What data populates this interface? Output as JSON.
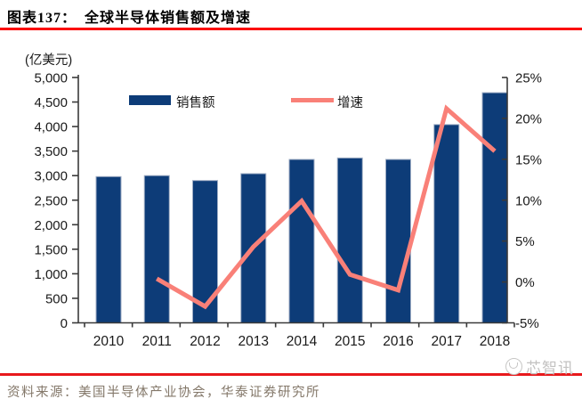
{
  "header": {
    "title": "图表137：　全球半导体销售额及增速"
  },
  "chart_data": {
    "type": "bar",
    "title": "全球半导体销售额及增速",
    "categories": [
      "2010",
      "2011",
      "2012",
      "2013",
      "2014",
      "2015",
      "2016",
      "2017",
      "2018"
    ],
    "series": [
      {
        "name": "销售额",
        "type": "bar",
        "axis": "left",
        "unit": "亿美元",
        "values": [
          2980,
          3000,
          2900,
          3040,
          3330,
          3360,
          3330,
          4040,
          4690
        ]
      },
      {
        "name": "增速",
        "type": "line",
        "axis": "right",
        "unit": "%",
        "values": [
          null,
          0.4,
          -3.0,
          4.3,
          9.9,
          0.9,
          -1.0,
          21.2,
          16.0
        ]
      }
    ],
    "left_axis": {
      "label": "(亿美元)",
      "min": 0,
      "max": 5000,
      "step": 500,
      "tick_labels": [
        "5,000",
        "4,500",
        "4,000",
        "3,500",
        "3,000",
        "2,500",
        "2,000",
        "1,500",
        "1,000",
        "500",
        "0"
      ]
    },
    "right_axis": {
      "label": "",
      "min": -5,
      "max": 25,
      "step": 5,
      "tick_labels": [
        "25%",
        "20%",
        "15%",
        "10%",
        "5%",
        "0%",
        "-5%"
      ]
    },
    "legend": [
      {
        "label": "销售额",
        "swatch": "bar"
      },
      {
        "label": "增速",
        "swatch": "line"
      }
    ],
    "legend_position": "top-inside",
    "grid": false
  },
  "footer": {
    "source": "资料来源：美国半导体产业协会，华泰证券研究所",
    "watermark": "芯智讯"
  },
  "colors": {
    "bar": "#0d3c78",
    "bar_edge": "#9fadc4",
    "line": "#f98078",
    "title_rule": "#fb0304",
    "footer_rule": "#e8191c",
    "axis": "#3a3a3a",
    "tick_text": "#1a1a1a",
    "source_text": "#84786a",
    "watermark": "#c3c2c1"
  }
}
